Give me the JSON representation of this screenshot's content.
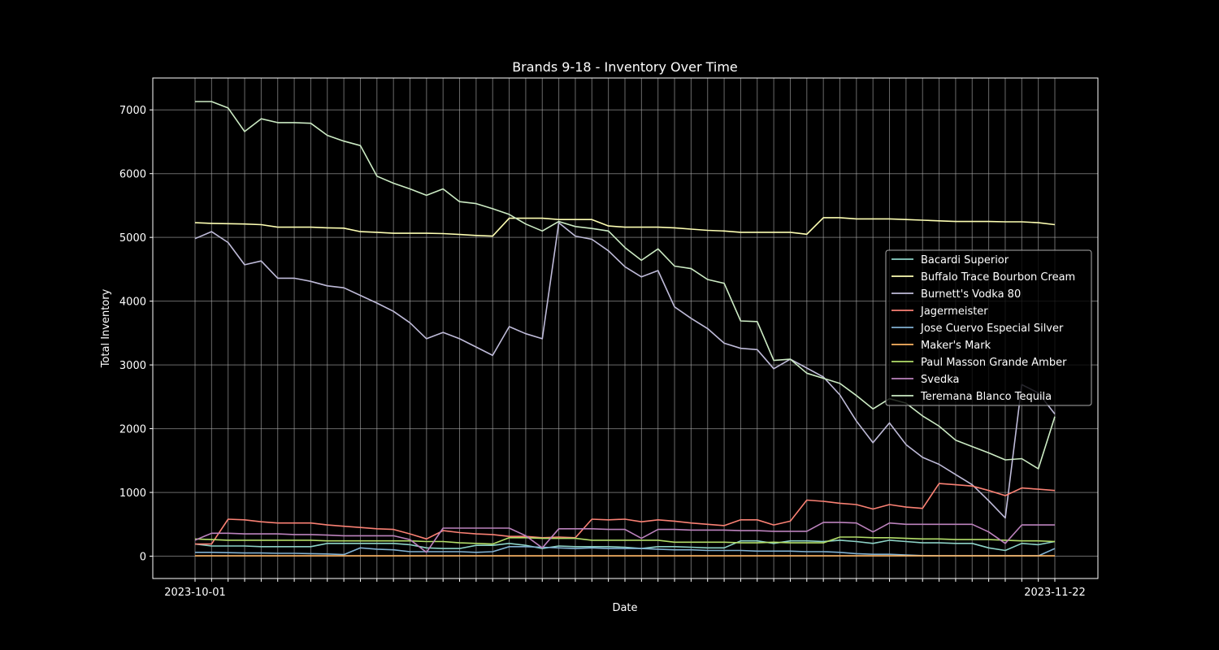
{
  "chart_data": {
    "type": "line",
    "title": "Brands 9-18 - Inventory Over Time",
    "xlabel": "Date",
    "ylabel": "Total Inventory",
    "ylim": [
      -350,
      7500
    ],
    "yticks": [
      0,
      1000,
      2000,
      3000,
      4000,
      5000,
      6000,
      7000
    ],
    "x_first_tick_label": "2023-10-01",
    "x_last_tick_label": "2023-11-22",
    "n_points": 53,
    "grid": true,
    "legend_position": "right",
    "series": [
      {
        "name": "Bacardi Superior",
        "color": "#8dd3c7",
        "values": [
          190,
          160,
          160,
          160,
          150,
          150,
          150,
          150,
          200,
          200,
          200,
          200,
          200,
          180,
          130,
          120,
          120,
          170,
          170,
          200,
          170,
          120,
          160,
          150,
          150,
          150,
          140,
          120,
          150,
          150,
          140,
          130,
          130,
          240,
          240,
          200,
          240,
          240,
          230,
          250,
          230,
          200,
          250,
          230,
          210,
          210,
          200,
          200,
          130,
          90,
          200,
          180,
          230
        ]
      },
      {
        "name": "Buffalo Trace Bourbon Cream",
        "color": "#feffb3",
        "values": [
          5230,
          5220,
          5215,
          5210,
          5200,
          5160,
          5160,
          5160,
          5150,
          5145,
          5090,
          5080,
          5065,
          5065,
          5065,
          5060,
          5045,
          5030,
          5020,
          5300,
          5300,
          5300,
          5280,
          5280,
          5280,
          5180,
          5160,
          5160,
          5160,
          5150,
          5130,
          5110,
          5100,
          5080,
          5080,
          5080,
          5080,
          5050,
          5310,
          5310,
          5290,
          5290,
          5290,
          5280,
          5270,
          5260,
          5250,
          5250,
          5250,
          5245,
          5245,
          5230,
          5200
        ]
      },
      {
        "name": "Burnett's Vodka 80",
        "color": "#bfbbd9",
        "values": [
          4980,
          5090,
          4920,
          4570,
          4630,
          4360,
          4360,
          4310,
          4240,
          4210,
          4090,
          3970,
          3840,
          3660,
          3410,
          3510,
          3410,
          3280,
          3150,
          3600,
          3490,
          3410,
          5230,
          5020,
          4970,
          4790,
          4540,
          4380,
          4480,
          3910,
          3730,
          3570,
          3340,
          3260,
          3240,
          2940,
          3090,
          2950,
          2810,
          2530,
          2120,
          1780,
          2090,
          1750,
          1550,
          1440,
          1280,
          1120,
          870,
          600,
          2690,
          2560,
          2230
        ]
      },
      {
        "name": "Jagermeister",
        "color": "#fa8174",
        "values": [
          190,
          190,
          580,
          570,
          540,
          520,
          520,
          520,
          490,
          470,
          450,
          430,
          420,
          350,
          270,
          400,
          370,
          350,
          340,
          310,
          310,
          290,
          300,
          290,
          580,
          570,
          580,
          540,
          570,
          550,
          520,
          500,
          480,
          570,
          570,
          490,
          550,
          880,
          860,
          830,
          810,
          740,
          810,
          770,
          750,
          1140,
          1120,
          1100,
          1030,
          950,
          1070,
          1050,
          1030
        ]
      },
      {
        "name": "Jose Cuervo Especial Silver",
        "color": "#81b1d2",
        "values": [
          60,
          60,
          55,
          50,
          50,
          45,
          45,
          40,
          35,
          25,
          130,
          110,
          100,
          70,
          70,
          70,
          70,
          60,
          70,
          150,
          150,
          140,
          130,
          120,
          130,
          120,
          120,
          120,
          110,
          100,
          100,
          90,
          90,
          90,
          80,
          80,
          80,
          70,
          70,
          60,
          40,
          30,
          30,
          20,
          10,
          5,
          5,
          5,
          5,
          5,
          5,
          5,
          120
        ]
      },
      {
        "name": "Maker's Mark",
        "color": "#fdb462",
        "values": [
          5,
          5,
          5,
          5,
          5,
          5,
          5,
          5,
          5,
          5,
          5,
          5,
          5,
          5,
          5,
          5,
          5,
          5,
          5,
          5,
          5,
          5,
          5,
          5,
          5,
          5,
          5,
          5,
          5,
          5,
          5,
          5,
          5,
          5,
          5,
          5,
          5,
          5,
          5,
          5,
          5,
          5,
          5,
          5,
          5,
          5,
          5,
          5,
          5,
          5,
          5,
          5,
          5
        ]
      },
      {
        "name": "Paul Masson Grande Amber",
        "color": "#b3de69",
        "values": [
          270,
          260,
          250,
          250,
          250,
          250,
          250,
          250,
          240,
          240,
          240,
          240,
          240,
          240,
          230,
          230,
          210,
          200,
          190,
          290,
          290,
          280,
          280,
          280,
          250,
          250,
          250,
          250,
          250,
          220,
          220,
          220,
          220,
          210,
          210,
          220,
          210,
          210,
          210,
          300,
          300,
          290,
          290,
          280,
          270,
          270,
          260,
          260,
          260,
          250,
          240,
          240,
          230
        ]
      },
      {
        "name": "Svedka",
        "color": "#bc82bd",
        "values": [
          250,
          360,
          360,
          350,
          350,
          350,
          340,
          340,
          330,
          320,
          320,
          320,
          320,
          260,
          60,
          440,
          440,
          440,
          440,
          440,
          320,
          130,
          430,
          430,
          430,
          420,
          420,
          280,
          420,
          420,
          410,
          410,
          410,
          400,
          400,
          390,
          390,
          390,
          530,
          530,
          520,
          380,
          520,
          500,
          500,
          500,
          500,
          500,
          380,
          200,
          490,
          490,
          490
        ]
      },
      {
        "name": "Teremana Blanco Tequila",
        "color": "#ccebc4",
        "values": [
          7130,
          7130,
          7030,
          6660,
          6860,
          6800,
          6800,
          6790,
          6600,
          6510,
          6440,
          5960,
          5850,
          5760,
          5660,
          5760,
          5560,
          5530,
          5450,
          5360,
          5210,
          5100,
          5250,
          5170,
          5140,
          5100,
          4840,
          4640,
          4820,
          4550,
          4510,
          4340,
          4280,
          3690,
          3680,
          3070,
          3090,
          2870,
          2790,
          2710,
          2520,
          2310,
          2470,
          2400,
          2200,
          2040,
          1820,
          1720,
          1620,
          1510,
          1530,
          1370,
          2190
        ]
      }
    ]
  }
}
